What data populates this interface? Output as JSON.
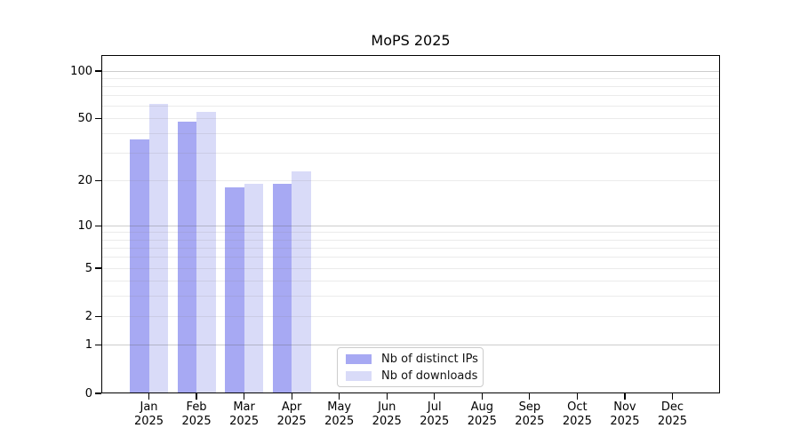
{
  "chart_data": {
    "type": "bar",
    "title": "MoPS 2025",
    "categories": [
      "Jan",
      "Feb",
      "Mar",
      "Apr",
      "May",
      "Jun",
      "Jul",
      "Aug",
      "Sep",
      "Oct",
      "Nov",
      "Dec"
    ],
    "category_year": "2025",
    "series": [
      {
        "name": "Nb of distinct IPs",
        "color": "#a7a9f3",
        "values": [
          37,
          48,
          18,
          19,
          null,
          null,
          null,
          null,
          null,
          null,
          null,
          null
        ]
      },
      {
        "name": "Nb of downloads",
        "color": "#d9dbf8",
        "values": [
          62,
          55,
          19,
          23,
          null,
          null,
          null,
          null,
          null,
          null,
          null,
          null
        ]
      }
    ],
    "yscale": "symlog",
    "ylim": [
      0,
      126
    ],
    "ytick_labels": [
      0,
      1,
      2,
      5,
      10,
      20,
      50,
      100
    ],
    "major_gridlines": [
      1,
      10,
      100
    ],
    "minor_gridlines": [
      2,
      3,
      4,
      5,
      6,
      7,
      8,
      9,
      20,
      30,
      40,
      50,
      60,
      70,
      80,
      90
    ],
    "grid": true,
    "legend_position": "lower center inside",
    "colors": {
      "axis": "#000000",
      "grid_minor": "#ebebeb",
      "grid_major": "#cdcdcd",
      "background": "#ffffff",
      "legend_border": "#cccccc"
    }
  }
}
